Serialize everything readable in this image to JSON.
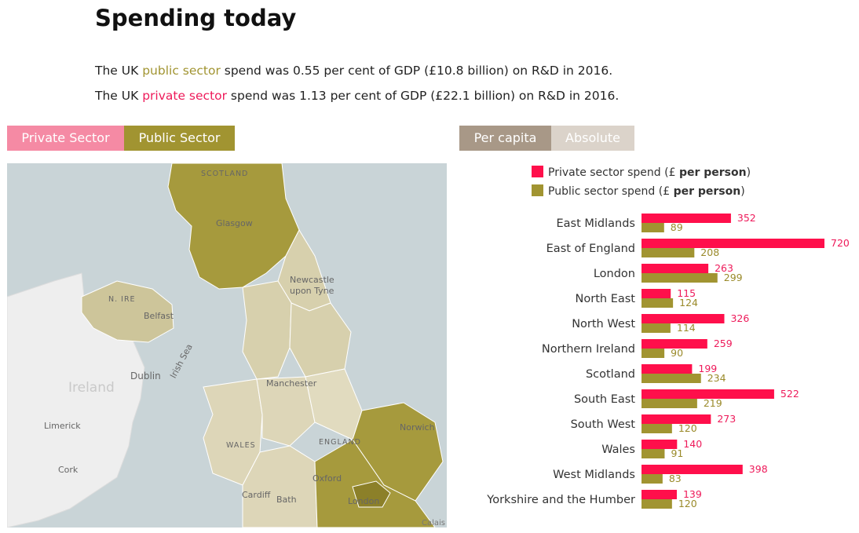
{
  "heading": "Spending today",
  "intro": {
    "line1": {
      "prefix": "The UK ",
      "highlight": "public sector",
      "suffix": " spend was 0.55 per cent of GDP (£10.8 billion) on R&D in 2016."
    },
    "line2": {
      "prefix": "The UK ",
      "highlight": "private sector",
      "suffix": " spend was 1.13 per cent of GDP (£22.1 billion) on R&D in 2016."
    }
  },
  "toggles": {
    "sector": {
      "private_label": "Private Sector",
      "public_label": "Public Sector",
      "selected": "Public Sector"
    },
    "measure": {
      "percap_label": "Per capita",
      "absolute_label": "Absolute",
      "selected": "Per capita"
    }
  },
  "map": {
    "labels": {
      "scotland": "SCOTLAND",
      "glasgow": "Glasgow",
      "newcastle": "Newcastle upon Tyne",
      "n_ire": "N. IRE",
      "belfast": "Belfast",
      "dublin": "Dublin",
      "ireland": "Ireland",
      "irish_sea": "Irish Sea",
      "manchester": "Manchester",
      "wales": "WALES",
      "england": "ENGLAND",
      "limerick": "Limerick",
      "cork": "Cork",
      "norwich": "Norwich",
      "oxford": "Oxford",
      "cardiff": "Cardiff",
      "bath": "Bath",
      "london": "London"
    },
    "credit": "Calais"
  },
  "colors": {
    "private": "#ff0f4b",
    "public": "#a19431",
    "private_text": "#ee1a5a",
    "public_text": "#9a8a2a"
  },
  "legend": {
    "private": {
      "prefix": "Private sector spend (£ ",
      "bold": "per person",
      "suffix": ")"
    },
    "public": {
      "prefix": "Public sector spend (£ ",
      "bold": "per person",
      "suffix": ")"
    }
  },
  "chart_data": {
    "type": "bar",
    "orientation": "horizontal",
    "categories": [
      "East Midlands",
      "East of England",
      "London",
      "North East",
      "North West",
      "Northern Ireland",
      "Scotland",
      "South East",
      "South West",
      "Wales",
      "West Midlands",
      "Yorkshire and the Humber"
    ],
    "series": [
      {
        "name": "Private sector spend (£ per person)",
        "values": [
          352,
          720,
          263,
          115,
          326,
          259,
          199,
          522,
          273,
          140,
          398,
          139
        ]
      },
      {
        "name": "Public sector spend (£ per person)",
        "values": [
          89,
          208,
          299,
          124,
          114,
          90,
          234,
          219,
          120,
          91,
          83,
          120
        ]
      }
    ],
    "xlim": [
      0,
      720
    ],
    "legend_position": "top",
    "grid": false,
    "data_labels": true
  }
}
